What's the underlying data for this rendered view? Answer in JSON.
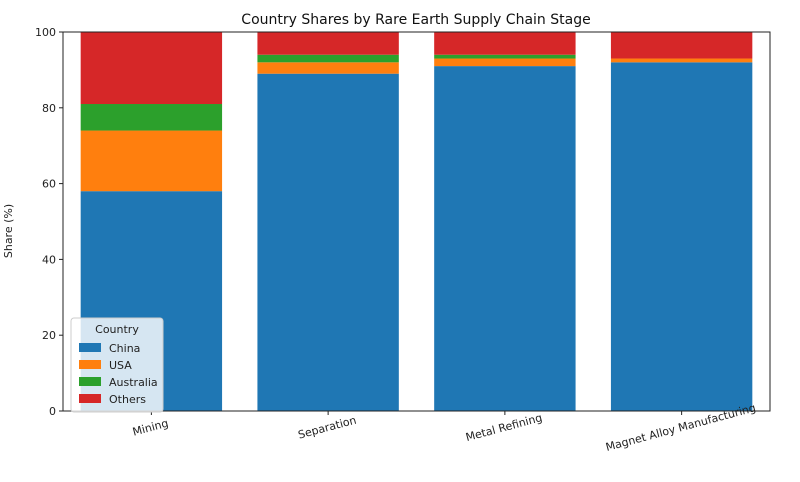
{
  "chart_data": {
    "type": "bar",
    "stacked": true,
    "title": "Country Shares by Rare Earth Supply Chain Stage",
    "xlabel": "",
    "ylabel": "Share (%)",
    "ylim": [
      0,
      100
    ],
    "yticks": [
      0,
      20,
      40,
      60,
      80,
      100
    ],
    "categories": [
      "Mining",
      "Separation",
      "Metal Refining",
      "Magnet Alloy Manufacturing"
    ],
    "series": [
      {
        "name": "China",
        "color": "#1f77b4",
        "values": [
          58,
          89,
          91,
          92
        ]
      },
      {
        "name": "USA",
        "color": "#ff7f0e",
        "values": [
          16,
          3,
          2,
          1
        ]
      },
      {
        "name": "Australia",
        "color": "#2ca02c",
        "values": [
          7,
          2,
          1,
          0
        ]
      },
      {
        "name": "Others",
        "color": "#d62728",
        "values": [
          19,
          6,
          6,
          7
        ]
      }
    ],
    "legend": {
      "title": "Country",
      "placement": "lower-left"
    },
    "grid": false,
    "xtick_rotation_deg": -15
  }
}
